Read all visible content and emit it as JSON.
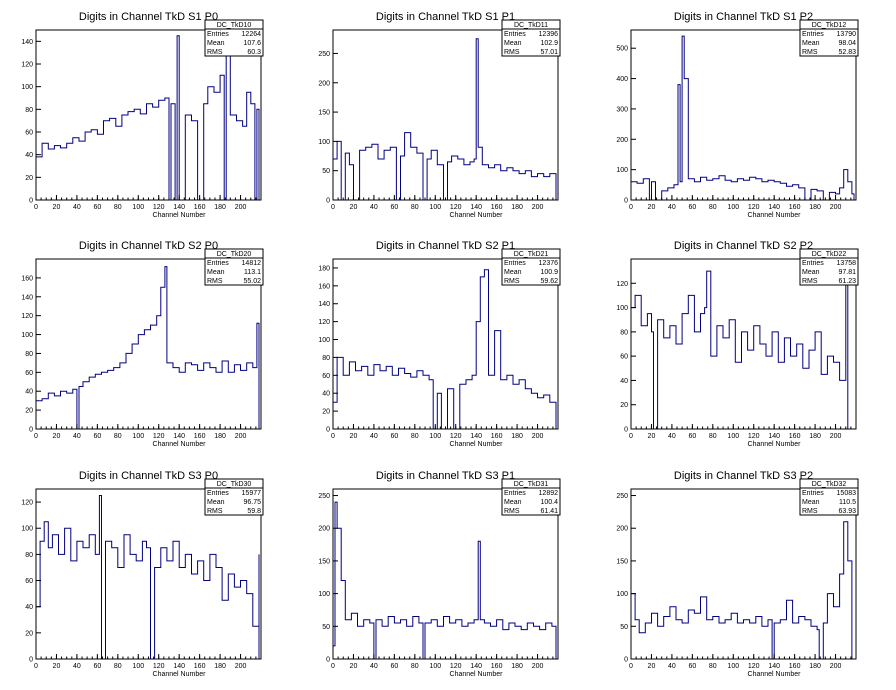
{
  "chart_data": [
    {
      "type": "histogram",
      "title": "Digits in Channel TkD S1 P0",
      "xlabel": "Channel Number",
      "xlim": [
        0,
        220
      ],
      "ylim": [
        0,
        150
      ],
      "xticks": [
        0,
        20,
        40,
        60,
        80,
        100,
        120,
        140,
        160,
        180,
        200
      ],
      "yticks": [
        0,
        20,
        40,
        60,
        80,
        100,
        120,
        140
      ],
      "stats": {
        "name": "DC_TkD10",
        "entries": "12264",
        "mean": "107.6",
        "rms": "60.3"
      },
      "x": [
        0,
        6,
        12,
        18,
        24,
        30,
        36,
        42,
        48,
        54,
        60,
        66,
        72,
        78,
        84,
        90,
        96,
        102,
        108,
        114,
        120,
        126,
        130,
        132,
        136,
        138,
        140,
        146,
        152,
        158,
        164,
        168,
        174,
        180,
        184,
        186,
        190,
        196,
        202,
        206,
        210,
        214,
        216
      ],
      "y": [
        38,
        50,
        45,
        48,
        46,
        50,
        55,
        52,
        60,
        62,
        58,
        70,
        72,
        65,
        75,
        78,
        80,
        76,
        85,
        82,
        88,
        90,
        0,
        85,
        0,
        145,
        0,
        75,
        70,
        0,
        85,
        100,
        95,
        110,
        0,
        140,
        75,
        70,
        65,
        95,
        85,
        0,
        80
      ]
    },
    {
      "type": "histogram",
      "title": "Digits in Channel TkD S1 P1",
      "xlabel": "Channel Number",
      "xlim": [
        0,
        220
      ],
      "ylim": [
        0,
        290
      ],
      "xticks": [
        0,
        20,
        40,
        60,
        80,
        100,
        120,
        140,
        160,
        180,
        200
      ],
      "yticks": [
        0,
        50,
        100,
        150,
        200,
        250
      ],
      "stats": {
        "name": "DC_TkD11",
        "entries": "12396",
        "mean": "102.9",
        "rms": "57.01"
      },
      "x": [
        0,
        4,
        8,
        12,
        16,
        20,
        26,
        32,
        38,
        44,
        50,
        56,
        62,
        66,
        70,
        76,
        82,
        88,
        92,
        96,
        102,
        108,
        112,
        116,
        122,
        128,
        134,
        138,
        140,
        142,
        146,
        152,
        158,
        164,
        170,
        176,
        182,
        188,
        194,
        200,
        206,
        212,
        218
      ],
      "y": [
        70,
        100,
        0,
        80,
        60,
        0,
        85,
        90,
        95,
        70,
        85,
        90,
        0,
        75,
        115,
        90,
        80,
        0,
        70,
        85,
        60,
        0,
        65,
        75,
        70,
        60,
        65,
        70,
        275,
        90,
        60,
        55,
        60,
        50,
        55,
        50,
        45,
        50,
        40,
        45,
        40,
        45,
        35
      ]
    },
    {
      "type": "histogram",
      "title": "Digits in Channel TkD S1 P2",
      "xlabel": "Channel Number",
      "xlim": [
        0,
        220
      ],
      "ylim": [
        0,
        560
      ],
      "xticks": [
        0,
        20,
        40,
        60,
        80,
        100,
        120,
        140,
        160,
        180,
        200
      ],
      "yticks": [
        0,
        100,
        200,
        300,
        400,
        500
      ],
      "stats": {
        "name": "DC_TkD12",
        "entries": "13790",
        "mean": "98.04",
        "rms": "52.83"
      },
      "x": [
        0,
        6,
        12,
        18,
        20,
        24,
        30,
        36,
        42,
        46,
        48,
        50,
        52,
        56,
        62,
        68,
        74,
        80,
        86,
        92,
        98,
        104,
        110,
        116,
        122,
        128,
        134,
        140,
        146,
        152,
        158,
        164,
        170,
        176,
        182,
        188,
        194,
        200,
        204,
        208,
        212,
        216
      ],
      "y": [
        60,
        55,
        70,
        0,
        60,
        0,
        30,
        40,
        50,
        380,
        60,
        540,
        400,
        70,
        60,
        75,
        65,
        70,
        80,
        65,
        60,
        70,
        65,
        75,
        70,
        60,
        65,
        60,
        55,
        45,
        50,
        40,
        0,
        35,
        30,
        0,
        25,
        20,
        40,
        100,
        60,
        20
      ]
    },
    {
      "type": "histogram",
      "title": "Digits in Channel TkD S2 P0",
      "xlabel": "Channel Number",
      "xlim": [
        0,
        220
      ],
      "ylim": [
        0,
        180
      ],
      "xticks": [
        0,
        20,
        40,
        60,
        80,
        100,
        120,
        140,
        160,
        180,
        200
      ],
      "yticks": [
        0,
        20,
        40,
        60,
        80,
        100,
        120,
        140,
        160
      ],
      "stats": {
        "name": "DC_TkD20",
        "entries": "14812",
        "mean": "113.1",
        "rms": "55.02"
      },
      "x": [
        0,
        6,
        12,
        18,
        24,
        30,
        36,
        40,
        42,
        46,
        52,
        58,
        64,
        70,
        76,
        82,
        88,
        94,
        100,
        106,
        112,
        118,
        122,
        126,
        128,
        134,
        140,
        146,
        152,
        158,
        164,
        170,
        176,
        182,
        188,
        194,
        200,
        206,
        212,
        216,
        218
      ],
      "y": [
        30,
        32,
        38,
        35,
        40,
        38,
        42,
        0,
        45,
        50,
        55,
        58,
        60,
        62,
        65,
        70,
        80,
        90,
        100,
        105,
        110,
        120,
        150,
        172,
        70,
        65,
        60,
        70,
        68,
        62,
        70,
        65,
        60,
        72,
        60,
        68,
        62,
        70,
        65,
        112,
        0
      ]
    },
    {
      "type": "histogram",
      "title": "Digits in Channel TkD S2 P1",
      "xlabel": "Channel Number",
      "xlim": [
        0,
        220
      ],
      "ylim": [
        0,
        190
      ],
      "xticks": [
        0,
        20,
        40,
        60,
        80,
        100,
        120,
        140,
        160,
        180,
        200
      ],
      "yticks": [
        0,
        20,
        40,
        60,
        80,
        100,
        120,
        140,
        160,
        180
      ],
      "stats": {
        "name": "DC_TkD21",
        "entries": "12376",
        "mean": "100.9",
        "rms": "59.62"
      },
      "x": [
        0,
        4,
        10,
        16,
        22,
        28,
        34,
        40,
        46,
        52,
        58,
        64,
        70,
        76,
        82,
        88,
        94,
        98,
        102,
        106,
        112,
        118,
        124,
        130,
        136,
        140,
        144,
        148,
        152,
        158,
        164,
        170,
        176,
        182,
        188,
        194,
        200,
        206,
        212,
        218
      ],
      "y": [
        30,
        80,
        60,
        75,
        65,
        70,
        60,
        72,
        65,
        70,
        60,
        68,
        62,
        58,
        65,
        60,
        55,
        0,
        40,
        0,
        45,
        0,
        50,
        55,
        60,
        120,
        170,
        178,
        60,
        110,
        55,
        60,
        50,
        55,
        45,
        40,
        35,
        38,
        30,
        25
      ]
    },
    {
      "type": "histogram",
      "title": "Digits in Channel TkD S2 P2",
      "xlabel": "Channel Number",
      "xlim": [
        0,
        220
      ],
      "ylim": [
        0,
        140
      ],
      "xticks": [
        0,
        20,
        40,
        60,
        80,
        100,
        120,
        140,
        160,
        180,
        200
      ],
      "yticks": [
        0,
        20,
        40,
        60,
        80,
        100,
        120
      ],
      "stats": {
        "name": "DC_TkD22",
        "entries": "13758",
        "mean": "97.81",
        "rms": "61.23"
      },
      "x": [
        0,
        4,
        10,
        16,
        20,
        22,
        26,
        32,
        38,
        44,
        50,
        56,
        62,
        68,
        72,
        74,
        78,
        84,
        90,
        96,
        102,
        108,
        114,
        120,
        126,
        132,
        138,
        144,
        150,
        156,
        162,
        168,
        174,
        180,
        186,
        192,
        198,
        204,
        210,
        212,
        214
      ],
      "y": [
        100,
        110,
        85,
        95,
        80,
        0,
        90,
        75,
        85,
        70,
        95,
        110,
        80,
        95,
        100,
        130,
        60,
        85,
        75,
        90,
        55,
        80,
        65,
        85,
        70,
        60,
        80,
        55,
        75,
        60,
        70,
        50,
        65,
        80,
        45,
        60,
        55,
        40,
        135,
        0,
        0
      ]
    },
    {
      "type": "histogram",
      "title": "Digits in Channel TkD S3 P0",
      "xlabel": "Channel Number",
      "xlim": [
        0,
        220
      ],
      "ylim": [
        0,
        130
      ],
      "xticks": [
        0,
        20,
        40,
        60,
        80,
        100,
        120,
        140,
        160,
        180,
        200
      ],
      "yticks": [
        0,
        20,
        40,
        60,
        80,
        100,
        120
      ],
      "stats": {
        "name": "DC_TkD30",
        "entries": "15977",
        "mean": "96.75",
        "rms": "59.8"
      },
      "x": [
        0,
        4,
        8,
        12,
        16,
        22,
        28,
        34,
        40,
        46,
        52,
        58,
        62,
        64,
        68,
        74,
        80,
        86,
        92,
        98,
        104,
        108,
        112,
        116,
        122,
        128,
        134,
        140,
        146,
        152,
        158,
        164,
        170,
        176,
        182,
        188,
        194,
        200,
        206,
        212,
        218
      ],
      "y": [
        40,
        90,
        105,
        85,
        95,
        80,
        100,
        75,
        90,
        85,
        95,
        80,
        125,
        0,
        90,
        85,
        70,
        95,
        80,
        75,
        90,
        85,
        0,
        70,
        85,
        75,
        90,
        70,
        80,
        65,
        75,
        60,
        80,
        70,
        45,
        65,
        55,
        60,
        50,
        25,
        80
      ]
    },
    {
      "type": "histogram",
      "title": "Digits in Channel TkD S3 P1",
      "xlabel": "Channel Number",
      "xlim": [
        0,
        220
      ],
      "ylim": [
        0,
        260
      ],
      "xticks": [
        0,
        20,
        40,
        60,
        80,
        100,
        120,
        140,
        160,
        180,
        200
      ],
      "yticks": [
        0,
        50,
        100,
        150,
        200,
        250
      ],
      "stats": {
        "name": "DC_TkD31",
        "entries": "12892",
        "mean": "100.4",
        "rms": "61.41"
      },
      "x": [
        0,
        2,
        4,
        8,
        12,
        18,
        24,
        30,
        36,
        40,
        42,
        48,
        54,
        60,
        66,
        72,
        78,
        84,
        88,
        90,
        96,
        102,
        108,
        114,
        120,
        126,
        132,
        138,
        142,
        144,
        148,
        154,
        160,
        166,
        172,
        178,
        184,
        190,
        196,
        202,
        208,
        214,
        218
      ],
      "y": [
        20,
        240,
        200,
        120,
        60,
        70,
        50,
        60,
        55,
        0,
        60,
        50,
        65,
        55,
        60,
        50,
        65,
        55,
        0,
        55,
        60,
        50,
        65,
        55,
        60,
        50,
        55,
        60,
        180,
        60,
        55,
        50,
        60,
        45,
        55,
        50,
        45,
        55,
        50,
        45,
        55,
        50,
        45
      ]
    },
    {
      "type": "histogram",
      "title": "Digits in Channel TkD S3 P2",
      "xlabel": "Channel Number",
      "xlim": [
        0,
        220
      ],
      "ylim": [
        0,
        260
      ],
      "xticks": [
        0,
        20,
        40,
        60,
        80,
        100,
        120,
        140,
        160,
        180,
        200
      ],
      "yticks": [
        0,
        50,
        100,
        150,
        200,
        250
      ],
      "stats": {
        "name": "DC_TkD32",
        "entries": "15083",
        "mean": "110.5",
        "rms": "63.93"
      },
      "x": [
        0,
        4,
        8,
        14,
        20,
        26,
        32,
        38,
        44,
        50,
        56,
        62,
        68,
        74,
        80,
        86,
        92,
        98,
        104,
        110,
        116,
        122,
        128,
        134,
        138,
        140,
        146,
        152,
        158,
        164,
        170,
        176,
        182,
        184,
        188,
        192,
        198,
        204,
        208,
        212,
        216
      ],
      "y": [
        100,
        60,
        40,
        55,
        70,
        50,
        65,
        80,
        60,
        55,
        75,
        70,
        95,
        60,
        65,
        55,
        60,
        70,
        55,
        60,
        55,
        65,
        50,
        60,
        0,
        55,
        60,
        90,
        55,
        65,
        60,
        50,
        45,
        0,
        55,
        100,
        80,
        130,
        210,
        150,
        0
      ]
    }
  ]
}
